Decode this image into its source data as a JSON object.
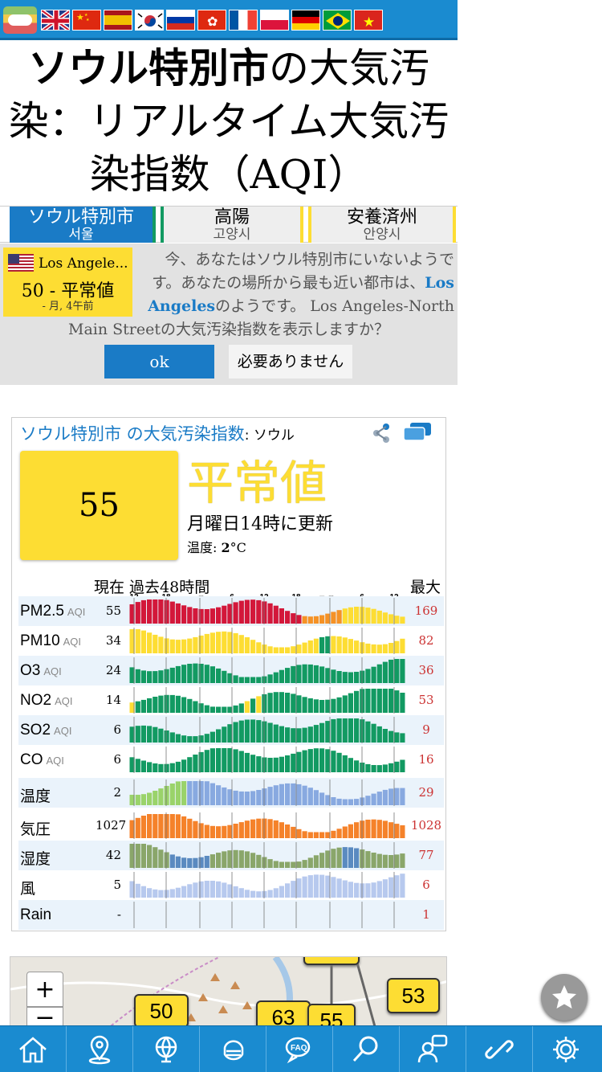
{
  "title": {
    "bold": "ソウル特別市",
    "rest": "の大気汚染：リアルタイム大気汚染指数（AQI）"
  },
  "flags": [
    "uk-flag",
    "china-flag",
    "spain-flag",
    "korea-flag",
    "russia-flag",
    "hongkong-flag",
    "france-flag",
    "poland-flag",
    "germany-flag",
    "brazil-flag",
    "vietnam-flag"
  ],
  "tabs": [
    {
      "label": "ソウル特別市",
      "sub": "서울",
      "active": true
    },
    {
      "label": "高陽",
      "sub": "고양시",
      "active": false
    },
    {
      "label": "安養済州",
      "sub": "안양시",
      "active": false
    }
  ],
  "notice": {
    "nearby_city": "Los Angele...",
    "nearby_value": "50 - 平常値",
    "nearby_ago": "- 月, 4午前",
    "msg_before": "今、あなたはソウル特別市にいないようです。あなたの場所から最も近い都市は、",
    "msg_link": "Los Angeles",
    "msg_after": "のようです。 Los Angeles-North",
    "msg2": "Main Streetの大気汚染指数を表示しますか？",
    "ok": "ok",
    "no": "必要ありません"
  },
  "card": {
    "city": "ソウル特別市",
    "hdr_mid": " の大気汚染指数",
    "hdr_station": ": ソウル",
    "aqi": "55",
    "level": "平常値",
    "updated": "月曜日14時に更新",
    "temp_label": "温度: ",
    "temp_value": "2",
    "temp_unit": "°C",
    "hist_hdr": "現在 過去48時間",
    "max_hdr": "最大",
    "ticks": [
      "12",
      "18",
      "日曜日",
      "6",
      "12",
      "18",
      "月曜日",
      "6",
      "12"
    ],
    "colors": {
      "red": "#d3173a",
      "orange": "#f59226",
      "yellow": "#fddd33",
      "green": "#129a62",
      "tgreen": "#9ad36a",
      "tblue": "#88a9e0",
      "porange": "#f5822a",
      "hum": "#8aa66a",
      "humblue": "#5a8ac0",
      "wind": "#b7c9ee"
    }
  },
  "chart_data": {
    "type": "bar",
    "x_hours": 48,
    "series": [
      {
        "name": "PM2.5",
        "unit": "AQI",
        "current": "55",
        "max": "169"
      },
      {
        "name": "PM10",
        "unit": "AQI",
        "current": "34",
        "max": "82"
      },
      {
        "name": "O3",
        "unit": "AQI",
        "current": "24",
        "max": "36"
      },
      {
        "name": "NO2",
        "unit": "AQI",
        "current": "14",
        "max": "53"
      },
      {
        "name": "SO2",
        "unit": "AQI",
        "current": "6",
        "max": "9"
      },
      {
        "name": "CO",
        "unit": "AQI",
        "current": "6",
        "max": "16"
      },
      {
        "name": "温度",
        "unit": "",
        "current": "2",
        "max": "29"
      },
      {
        "name": "気圧",
        "unit": "",
        "current": "1027",
        "max": "1028"
      },
      {
        "name": "湿度",
        "unit": "",
        "current": "42",
        "max": "77"
      },
      {
        "name": "風",
        "unit": "",
        "current": "5",
        "max": "6"
      },
      {
        "name": "Rain",
        "unit": "",
        "current": "-",
        "max": "1"
      }
    ]
  },
  "map": {
    "markers": [
      "50",
      "63",
      "55",
      "53"
    ],
    "zoom_in": "+",
    "zoom_out": "−"
  },
  "nav": [
    "home-icon",
    "map-pin-icon",
    "globe-icon",
    "mask-icon",
    "faq-icon",
    "search-icon",
    "chat-person-icon",
    "link-icon",
    "gear-icon"
  ]
}
